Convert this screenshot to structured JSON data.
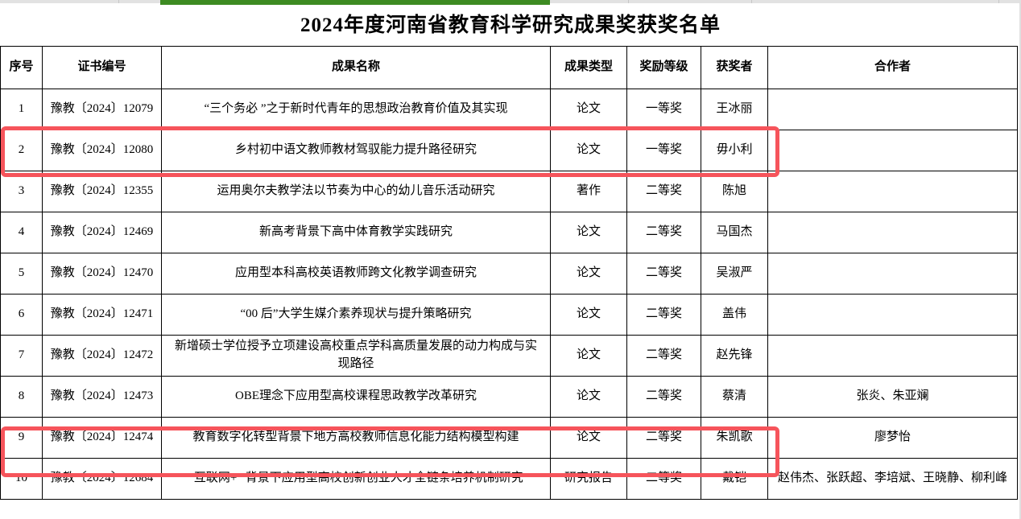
{
  "page": {
    "title": "2024年度河南省教育科学研究成果奖获奖名单"
  },
  "colors": {
    "accent_green": "#3d8b22",
    "highlight_red": "#f6545b"
  },
  "table": {
    "headers": [
      "序号",
      "证书编号",
      "成果名称",
      "成果类型",
      "奖励等级",
      "获奖者",
      "合作者"
    ],
    "rows": [
      {
        "no": "1",
        "cert": "豫教〔2024〕12079",
        "name": "“三个务必 ”之于新时代青年的思想政治教育价值及其实现",
        "type": "论文",
        "level": "一等奖",
        "winner": "王冰丽",
        "collaborators": "",
        "highlighted": false
      },
      {
        "no": "2",
        "cert": "豫教〔2024〕12080",
        "name": "乡村初中语文教师教材驾驭能力提升路径研究",
        "type": "论文",
        "level": "一等奖",
        "winner": "毋小利",
        "collaborators": "",
        "highlighted": true
      },
      {
        "no": "3",
        "cert": "豫教〔2024〕12355",
        "name": "运用奥尔夫教学法以节奏为中心的幼儿音乐活动研究",
        "type": "著作",
        "level": "二等奖",
        "winner": "陈旭",
        "collaborators": "",
        "highlighted": false
      },
      {
        "no": "4",
        "cert": "豫教〔2024〕12469",
        "name": "新高考背景下高中体育教学实践研究",
        "type": "论文",
        "level": "二等奖",
        "winner": "马国杰",
        "collaborators": "",
        "highlighted": false
      },
      {
        "no": "5",
        "cert": "豫教〔2024〕12470",
        "name": "应用型本科高校英语教师跨文化教学调查研究",
        "type": "论文",
        "level": "二等奖",
        "winner": "吴淑严",
        "collaborators": "",
        "highlighted": false
      },
      {
        "no": "6",
        "cert": "豫教〔2024〕12471",
        "name": "“00 后”大学生媒介素养现状与提升策略研究",
        "type": "论文",
        "level": "二等奖",
        "winner": "盖伟",
        "collaborators": "",
        "highlighted": false
      },
      {
        "no": "7",
        "cert": "豫教〔2024〕12472",
        "name": "新增硕士学位授予立项建设高校重点学科高质量发展的动力构成与实现路径",
        "type": "论文",
        "level": "二等奖",
        "winner": "赵先锋",
        "collaborators": "",
        "highlighted": false
      },
      {
        "no": "8",
        "cert": "豫教〔2024〕12473",
        "name": "OBE理念下应用型高校课程思政教学改革研究",
        "type": "论文",
        "level": "二等奖",
        "winner": "蔡清",
        "collaborators": "张炎、朱亚斓",
        "highlighted": false
      },
      {
        "no": "9",
        "cert": "豫教〔2024〕12474",
        "name": "教育数字化转型背景下地方高校教师信息化能力结构模型构建",
        "type": "论文",
        "level": "二等奖",
        "winner": "朱凯歌",
        "collaborators": "廖梦怡",
        "highlighted": true
      },
      {
        "no": "10",
        "cert": "豫教〔2024〕12684",
        "name": "“互联网+ ”背景下应用型高校创新创业人才全链条培养机制研究",
        "type": "研究报告",
        "level": "二等奖",
        "winner": "戴铠",
        "collaborators": "赵伟杰、张跃超、李培斌、王晓静、柳利峰",
        "highlighted": false
      }
    ]
  }
}
